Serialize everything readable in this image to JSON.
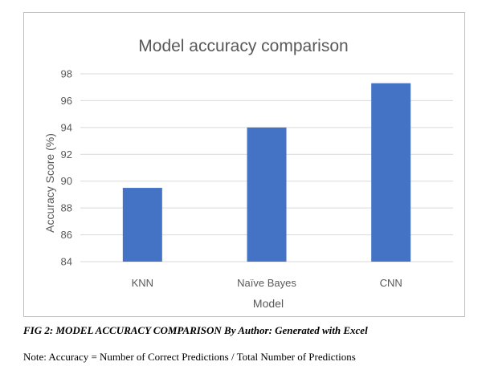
{
  "chart_data": {
    "type": "bar",
    "title": "Model accuracy comparison",
    "xlabel": "Model",
    "ylabel": "Accuracy Score (%)",
    "categories": [
      "KNN",
      "Naïve Bayes",
      "CNN"
    ],
    "values": [
      89.5,
      94.0,
      97.3
    ],
    "ylim": [
      84,
      98
    ],
    "yticks": [
      84,
      86,
      88,
      90,
      92,
      94,
      96,
      98
    ],
    "grid": true,
    "legend": "none",
    "bar_color": "#4472c4",
    "grid_color": "#d9d9d9"
  },
  "caption": "FIG 2: MODEL ACCURACY COMPARISON By Author: Generated with Excel",
  "note": "Note: Accuracy = Number of Correct Predictions / Total Number of Predictions"
}
